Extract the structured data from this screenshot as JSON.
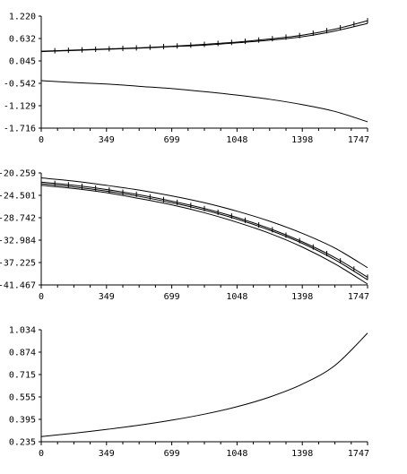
{
  "chart_data": [
    {
      "type": "line",
      "xlim": [
        0,
        1747
      ],
      "ylim": [
        -1.716,
        1.22
      ],
      "x_ticks": [
        "0",
        "349",
        "699",
        "1048",
        "1398",
        "1747"
      ],
      "y_ticks": [
        "1.220",
        "0.632",
        "0.045",
        "-0.542",
        "-1.129",
        "-1.716"
      ],
      "x": [
        0,
        175,
        349,
        524,
        699,
        874,
        1048,
        1223,
        1398,
        1573,
        1747
      ],
      "series": [
        {
          "values": [
            0.3,
            0.33,
            0.36,
            0.39,
            0.43,
            0.48,
            0.54,
            0.62,
            0.72,
            0.88,
            1.1
          ],
          "markers": true
        },
        {
          "values": [
            0.29,
            0.32,
            0.35,
            0.38,
            0.42,
            0.46,
            0.52,
            0.59,
            0.68,
            0.83,
            1.03
          ],
          "markers": false
        },
        {
          "values": [
            -0.47,
            -0.52,
            -0.56,
            -0.62,
            -0.68,
            -0.76,
            -0.85,
            -0.96,
            -1.1,
            -1.28,
            -1.55
          ],
          "markers": false
        }
      ],
      "grid": false
    },
    {
      "type": "line",
      "xlim": [
        0,
        1747
      ],
      "ylim": [
        -41.467,
        -20.259
      ],
      "x_ticks": [
        "0",
        "349",
        "699",
        "1048",
        "1398",
        "1747"
      ],
      "y_ticks": [
        "-20.259",
        "-24.501",
        "-28.742",
        "-32.984",
        "-37.225",
        "-41.467"
      ],
      "x": [
        0,
        175,
        349,
        524,
        699,
        874,
        1048,
        1223,
        1398,
        1573,
        1747
      ],
      "series": [
        {
          "values": [
            -21.2,
            -21.8,
            -22.6,
            -23.5,
            -24.6,
            -25.9,
            -27.5,
            -29.4,
            -31.7,
            -34.5,
            -38.2
          ],
          "markers": false
        },
        {
          "values": [
            -22.0,
            -22.6,
            -23.4,
            -24.4,
            -25.6,
            -27.0,
            -28.7,
            -30.8,
            -33.3,
            -36.3,
            -40.0
          ],
          "markers": true
        },
        {
          "values": [
            -22.3,
            -22.9,
            -23.7,
            -24.7,
            -25.9,
            -27.3,
            -29.0,
            -31.1,
            -33.6,
            -36.7,
            -40.5
          ],
          "markers": false
        },
        {
          "values": [
            -22.6,
            -23.2,
            -24.0,
            -25.1,
            -26.3,
            -27.8,
            -29.6,
            -31.7,
            -34.3,
            -37.5,
            -41.3
          ],
          "markers": false
        }
      ],
      "grid": false
    },
    {
      "type": "line",
      "xlim": [
        0,
        1747
      ],
      "ylim": [
        0.235,
        1.034
      ],
      "x_ticks": [
        "0",
        "349",
        "699",
        "1048",
        "1398",
        "1747"
      ],
      "y_ticks": [
        "1.034",
        "0.874",
        "0.715",
        "0.555",
        "0.395",
        "0.235"
      ],
      "x": [
        0,
        175,
        349,
        524,
        699,
        874,
        1048,
        1223,
        1398,
        1573,
        1747
      ],
      "series": [
        {
          "values": [
            0.272,
            0.296,
            0.323,
            0.353,
            0.389,
            0.432,
            0.485,
            0.554,
            0.646,
            0.78,
            1.01
          ],
          "markers": false
        }
      ],
      "grid": false
    }
  ]
}
